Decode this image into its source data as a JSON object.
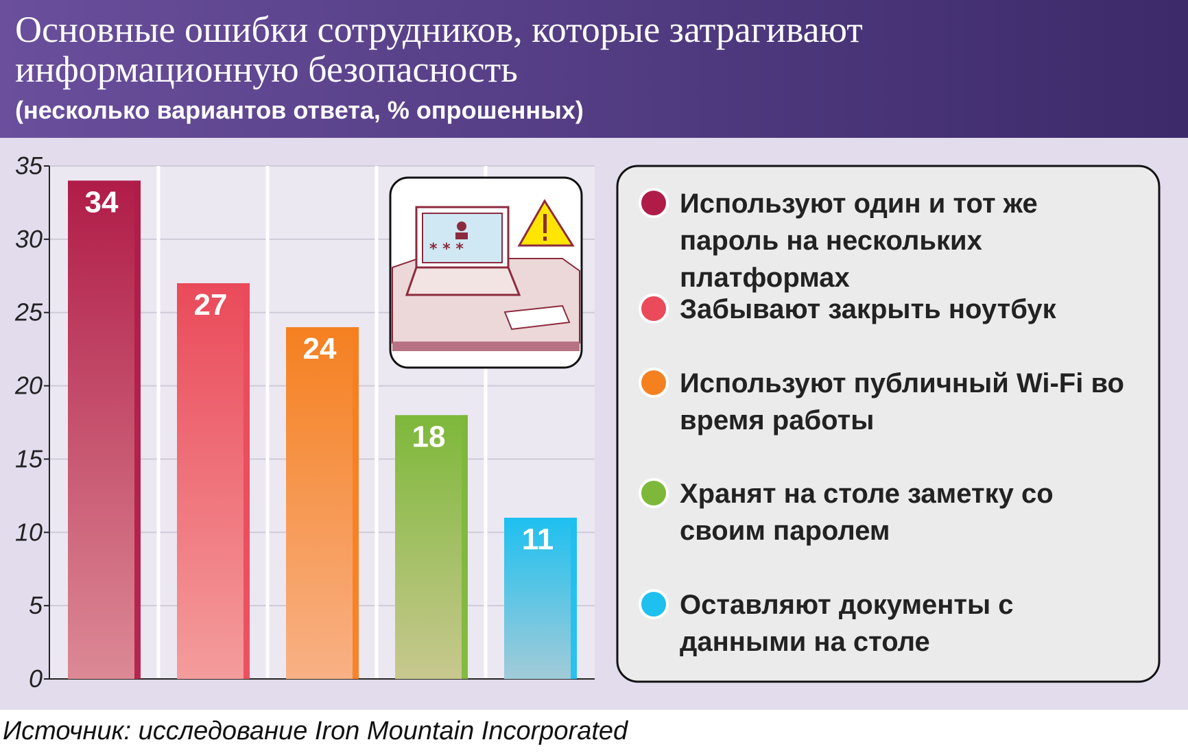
{
  "chart_data": {
    "type": "bar",
    "title": "Основные ошибки сотрудников, которые затрагивают информационную безопасность",
    "subtitle": "(несколько вариантов ответа, % опрошенных)",
    "categories": [
      "Используют один и тот же пароль на нескольких платформах",
      "Забывают закрыть ноутбук",
      "Используют публичный Wi-Fi во время работы",
      "Хранят на столе заметку со своим паролем",
      "Оставляют документы с данными на столе"
    ],
    "values": [
      34,
      27,
      24,
      18,
      11
    ],
    "colors": [
      "#b01c48",
      "#ea4a5a",
      "#f58020",
      "#7db83a",
      "#1ec0f0"
    ],
    "ylim": [
      0,
      35
    ],
    "yticks": [
      0,
      5,
      10,
      15,
      20,
      25,
      30,
      35
    ],
    "grid": true,
    "source": "Источник: исследование Iron Mountain Incorporated"
  }
}
